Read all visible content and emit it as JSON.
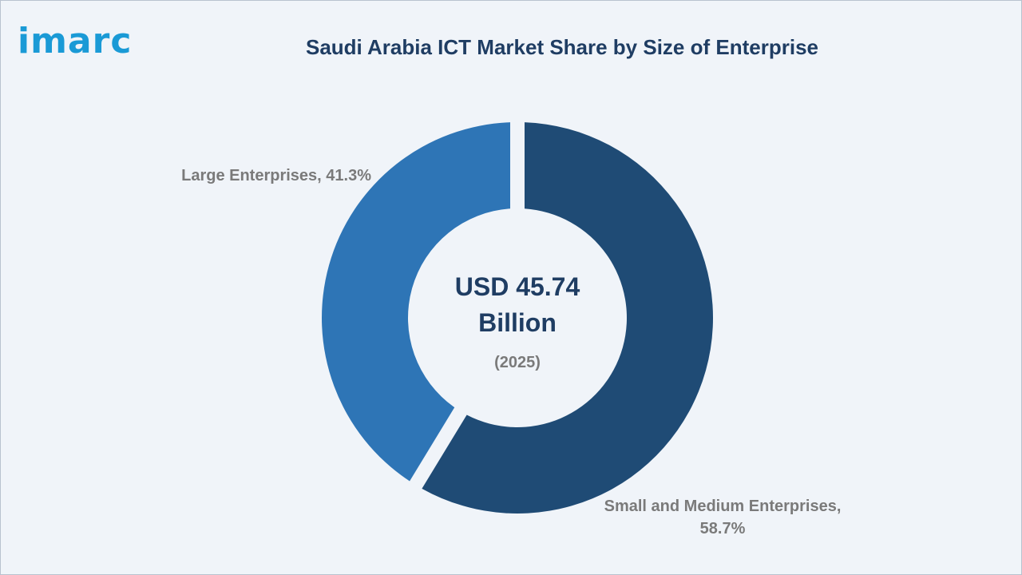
{
  "logo": {
    "text": "imarc"
  },
  "chart_data": {
    "type": "pie",
    "title": "Saudi Arabia ICT Market Share by Size of Enterprise",
    "center_text": {
      "line1": "USD 45.74",
      "line2": "Billion",
      "line3": "(2025)"
    },
    "series": [
      {
        "name": "Small and Medium Enterprises",
        "value": 58.7,
        "label_line1": "Small and Medium Enterprises,",
        "label_line2": "58.7%",
        "color": "#1f4b75"
      },
      {
        "name": "Large Enterprises",
        "value": 41.3,
        "label_line1": "Large Enterprises, 41.3%",
        "label_line2": "",
        "color": "#2e75b6"
      }
    ]
  }
}
